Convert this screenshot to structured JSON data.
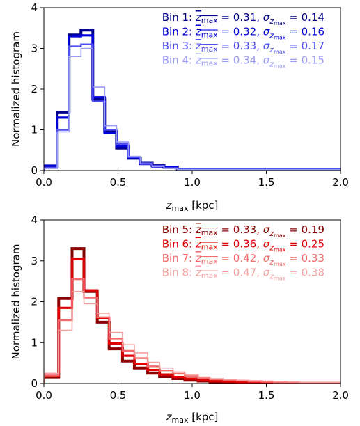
{
  "chart_data": [
    {
      "type": "step-histogram",
      "xlabel_main": "z",
      "xlabel_sub": "max",
      "xlabel_unit": "  [kpc]",
      "ylabel": "Normalized histogram",
      "xlim": [
        0.0,
        2.0
      ],
      "ylim": [
        0,
        4
      ],
      "xticks": [
        0.0,
        0.5,
        1.0,
        1.5,
        2.0
      ],
      "xtick_labels": [
        "0.0",
        "0.5",
        "1.0",
        "1.5",
        "2.0"
      ],
      "yticks": [
        0,
        1,
        2,
        3,
        4
      ],
      "ytick_labels": [
        "0",
        "1",
        "2",
        "3",
        "4"
      ],
      "legend_location": "top-right",
      "bin_edges": [
        0.0,
        0.09,
        0.17,
        0.25,
        0.33,
        0.41,
        0.49,
        0.57,
        0.65,
        0.73,
        0.81,
        0.9,
        2.0
      ],
      "series": [
        {
          "name": "Bin 1",
          "mean": "0.31",
          "sigma": "0.14",
          "color": "#00008b",
          "values": [
            0.1,
            1.42,
            3.33,
            3.45,
            1.75,
            0.95,
            0.55,
            0.3,
            0.18,
            0.12,
            0.08,
            0.03
          ]
        },
        {
          "name": "Bin 2",
          "mean": "0.32",
          "sigma": "0.16",
          "color": "#0000d8",
          "values": [
            0.12,
            1.3,
            3.3,
            3.32,
            1.8,
            0.92,
            0.6,
            0.32,
            0.16,
            0.1,
            0.08,
            0.03
          ]
        },
        {
          "name": "Bin 3",
          "mean": "0.33",
          "sigma": "0.17",
          "color": "#4f4fef",
          "values": [
            0.07,
            1.0,
            3.05,
            3.1,
            1.7,
            1.0,
            0.65,
            0.33,
            0.18,
            0.12,
            0.06,
            0.03
          ]
        },
        {
          "name": "Bin 4",
          "mean": "0.34",
          "sigma": "0.15",
          "color": "#9a9af5",
          "values": [
            0.05,
            0.95,
            2.8,
            3.0,
            2.05,
            1.1,
            0.7,
            0.35,
            0.16,
            0.1,
            0.05,
            0.02
          ]
        }
      ]
    },
    {
      "type": "step-histogram",
      "xlabel_main": "z",
      "xlabel_sub": "max",
      "xlabel_unit": " [kpc]",
      "ylabel": "Normalized histogram",
      "xlim": [
        0.0,
        2.0
      ],
      "ylim": [
        0,
        4
      ],
      "xticks": [
        0.0,
        0.5,
        1.0,
        1.5,
        2.0
      ],
      "xtick_labels": [
        "0.0",
        "0.5",
        "1.0",
        "1.5",
        "2.0"
      ],
      "yticks": [
        0,
        1,
        2,
        3,
        4
      ],
      "ytick_labels": [
        "0",
        "1",
        "2",
        "3",
        "4"
      ],
      "legend_location": "top-right",
      "bin_edges": [
        0.0,
        0.1,
        0.19,
        0.27,
        0.36,
        0.44,
        0.53,
        0.61,
        0.7,
        0.78,
        0.87,
        0.95,
        1.04,
        1.12,
        1.21,
        1.3,
        1.38,
        1.47,
        1.55,
        1.64,
        1.72,
        1.81,
        2.0
      ],
      "series": [
        {
          "name": "Bin 5",
          "mean": "0.33",
          "sigma": "0.19",
          "color": "#8b0000",
          "values": [
            0.16,
            2.08,
            3.3,
            2.25,
            1.5,
            0.85,
            0.55,
            0.38,
            0.25,
            0.17,
            0.12,
            0.08,
            0.06,
            0.04,
            0.03,
            0.02,
            0.02,
            0.01,
            0.01,
            0.01,
            0.0,
            0.0
          ]
        },
        {
          "name": "Bin 6",
          "mean": "0.36",
          "sigma": "0.25",
          "color": "#e00000",
          "values": [
            0.18,
            1.85,
            3.05,
            2.28,
            1.6,
            0.98,
            0.68,
            0.48,
            0.33,
            0.22,
            0.16,
            0.12,
            0.08,
            0.06,
            0.05,
            0.03,
            0.03,
            0.02,
            0.02,
            0.01,
            0.01,
            0.01
          ]
        },
        {
          "name": "Bin 7",
          "mean": "0.42",
          "sigma": "0.33",
          "color": "#f26a6a",
          "values": [
            0.2,
            1.55,
            2.55,
            2.1,
            1.62,
            1.1,
            0.8,
            0.62,
            0.42,
            0.32,
            0.24,
            0.18,
            0.13,
            0.1,
            0.08,
            0.07,
            0.05,
            0.04,
            0.03,
            0.03,
            0.02,
            0.02
          ]
        },
        {
          "name": "Bin 8",
          "mean": "0.47",
          "sigma": "0.38",
          "color": "#f5a0a0",
          "values": [
            0.25,
            1.3,
            2.25,
            1.95,
            1.72,
            1.25,
            0.95,
            0.75,
            0.52,
            0.38,
            0.28,
            0.22,
            0.16,
            0.12,
            0.1,
            0.08,
            0.07,
            0.06,
            0.05,
            0.04,
            0.03,
            0.03
          ]
        }
      ]
    }
  ]
}
